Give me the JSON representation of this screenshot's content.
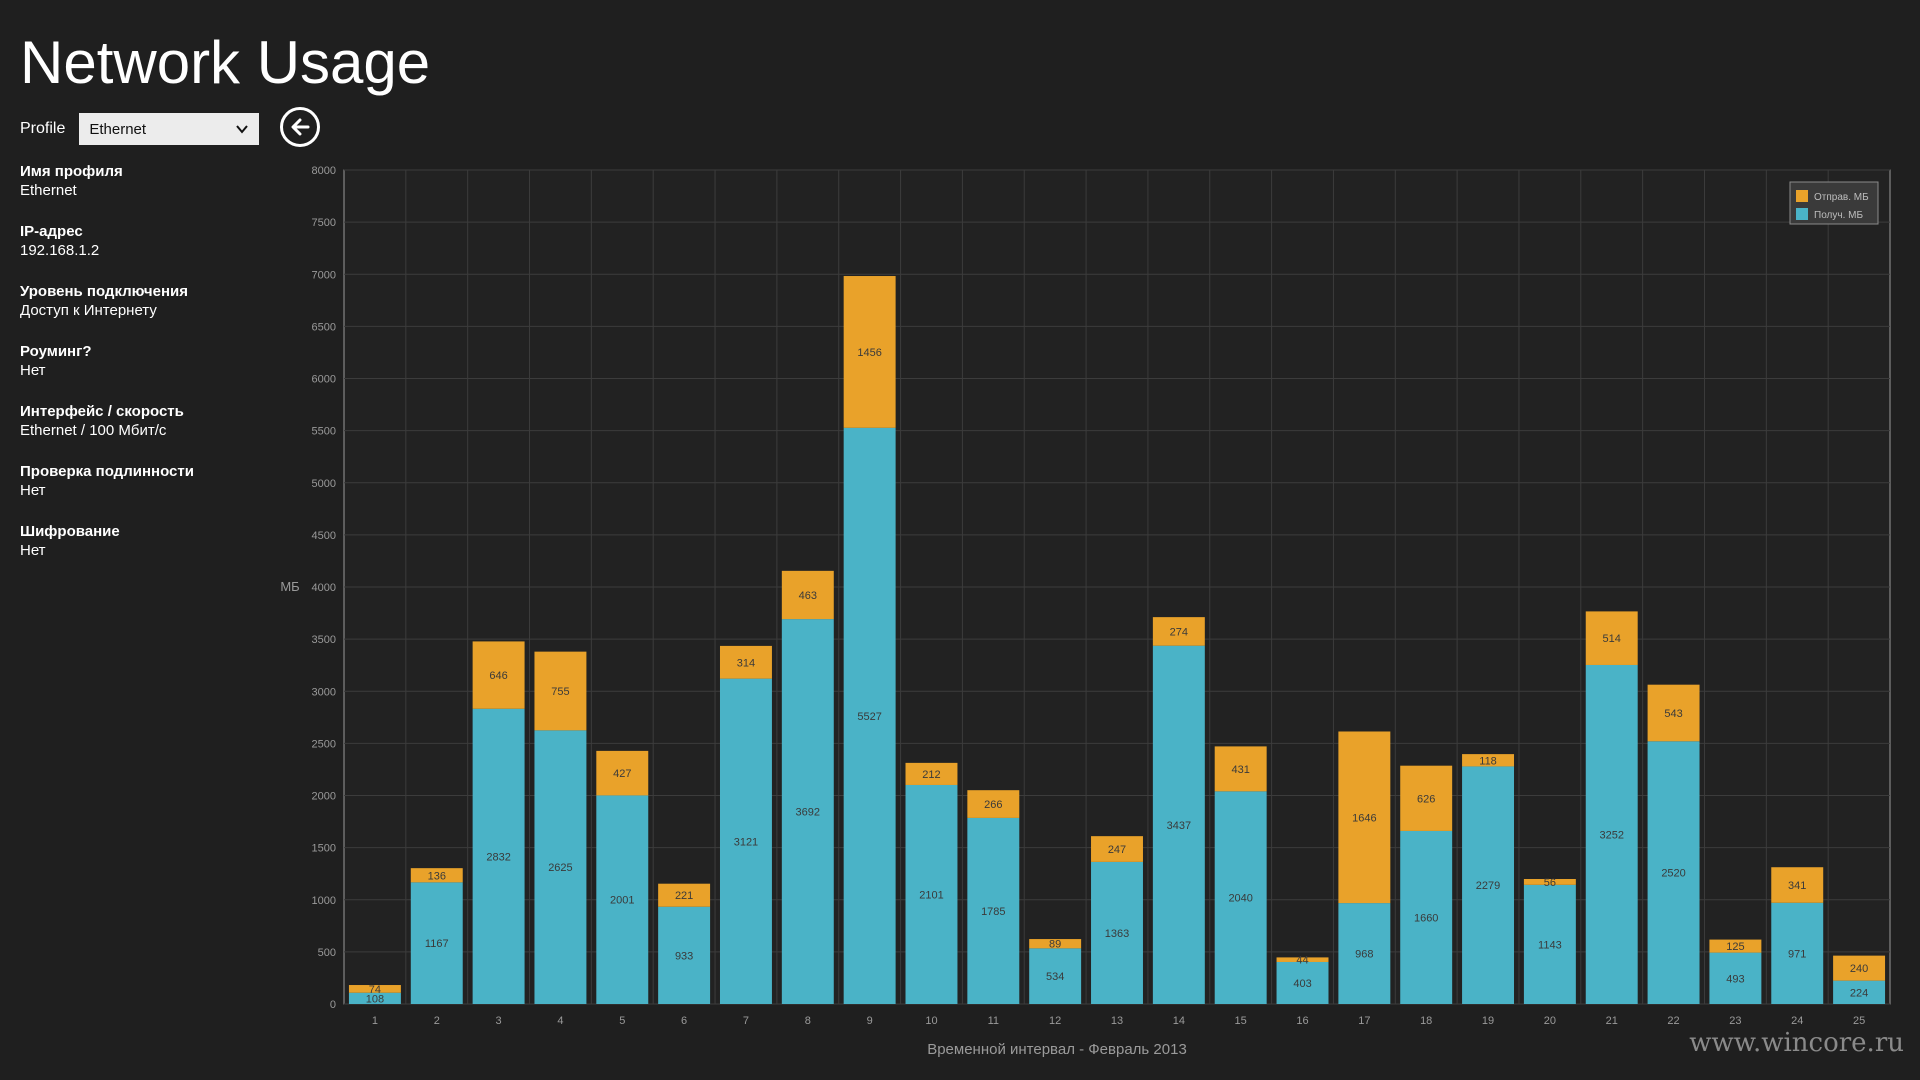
{
  "app": {
    "title": "Network Usage"
  },
  "profile": {
    "label": "Profile",
    "selected": "Ethernet"
  },
  "info": [
    {
      "label": "Имя профиля",
      "value": "Ethernet"
    },
    {
      "label": "IP-адрес",
      "value": "192.168.1.2"
    },
    {
      "label": "Уровень подключения",
      "value": "Доступ к Интернету"
    },
    {
      "label": "Роуминг?",
      "value": "Нет"
    },
    {
      "label": "Интерфейс / скорость",
      "value": "Ethernet / 100 Мбит/с"
    },
    {
      "label": "Проверка подлинности",
      "value": "Нет"
    },
    {
      "label": "Шифрование",
      "value": "Нет"
    }
  ],
  "colors": {
    "sent": "#e9a22a",
    "received": "#4ab3c7",
    "background": "#1f1f1f",
    "grid": "#3c3c3c"
  },
  "chart_data": {
    "type": "bar",
    "stacked": true,
    "ylabel": "МБ",
    "xlabel": "Временной интервал - Февраль 2013",
    "ylim": [
      0,
      8000
    ],
    "yticks": [
      0,
      500,
      1000,
      1500,
      2000,
      2500,
      3000,
      3500,
      4000,
      4500,
      5000,
      5500,
      6000,
      6500,
      7000,
      7500,
      8000
    ],
    "grid": true,
    "legend_position": "top-right",
    "categories": [
      "1",
      "2",
      "3",
      "4",
      "5",
      "6",
      "7",
      "8",
      "9",
      "10",
      "11",
      "12",
      "13",
      "14",
      "15",
      "16",
      "17",
      "18",
      "19",
      "20",
      "21",
      "22",
      "23",
      "24",
      "25"
    ],
    "series": [
      {
        "name": "Получ. МБ",
        "values": [
          108,
          1167,
          2832,
          2625,
          2001,
          933,
          3121,
          3692,
          5527,
          2101,
          1785,
          534,
          1363,
          3437,
          2040,
          403,
          968,
          1660,
          2279,
          1143,
          3252,
          2520,
          493,
          971,
          224
        ]
      },
      {
        "name": "Отправ. МБ",
        "values": [
          74,
          136,
          646,
          755,
          427,
          221,
          314,
          463,
          1456,
          212,
          266,
          89,
          247,
          274,
          431,
          44,
          1646,
          626,
          118,
          56,
          514,
          543,
          125,
          341,
          240
        ]
      }
    ]
  },
  "watermark": "www.wincore.ru"
}
